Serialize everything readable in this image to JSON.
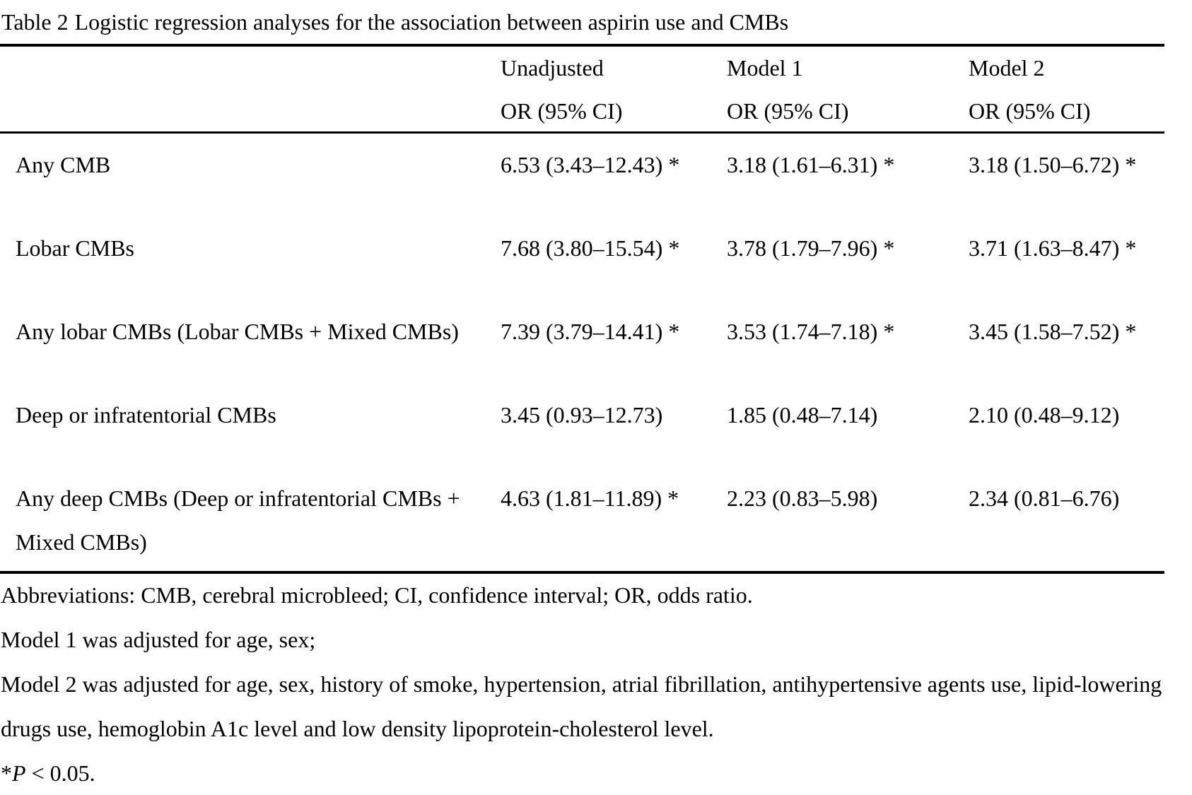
{
  "title": {
    "label": "Table 2",
    "text": "Logistic regression analyses for the association between aspirin use and CMBs"
  },
  "table": {
    "columns": [
      {
        "line1": "Unadjusted",
        "line2": "OR (95% CI)"
      },
      {
        "line1": "Model 1",
        "line2": "OR (95% CI)"
      },
      {
        "line1": "Model 2",
        "line2": "OR (95% CI)"
      }
    ],
    "rows": [
      {
        "label_lines": [
          "Any CMB"
        ],
        "unadjusted": "6.53 (3.43–12.43) *",
        "model1": "3.18 (1.61–6.31) *",
        "model2": "3.18 (1.50–6.72) *"
      },
      {
        "label_lines": [
          "Lobar CMBs"
        ],
        "unadjusted": "7.68 (3.80–15.54) *",
        "model1": "3.78 (1.79–7.96) *",
        "model2": "3.71 (1.63–8.47) *"
      },
      {
        "label_lines": [
          "Any lobar CMBs (Lobar CMBs + Mixed CMBs)"
        ],
        "unadjusted": "7.39 (3.79–14.41) *",
        "model1": "3.53 (1.74–7.18) *",
        "model2": "3.45 (1.58–7.52) *"
      },
      {
        "label_lines": [
          "Deep or infratentorial CMBs"
        ],
        "unadjusted": "3.45 (0.93–12.73)",
        "model1": "1.85 (0.48–7.14)",
        "model2": "2.10 (0.48–9.12)"
      },
      {
        "label_lines": [
          "Any deep CMBs (Deep or infratentorial CMBs +",
          "Mixed CMBs)"
        ],
        "unadjusted": "4.63 (1.81–11.89) *",
        "model1": "2.23 (0.83–5.98)",
        "model2": "2.34 (0.81–6.76)"
      }
    ]
  },
  "footnotes": {
    "abbreviations": "Abbreviations: CMB, cerebral microbleed; CI, confidence interval; OR, odds ratio.",
    "model1": "Model 1 was adjusted for age, sex;",
    "model2_line1": "Model 2 was adjusted for age, sex, history of smoke, hypertension, atrial fibrillation, antihypertensive agents use, lipid-lowering",
    "model2_line2": "drugs use, hemoglobin A1c level and low density lipoprotein-cholesterol level.",
    "significance": {
      "star": "*",
      "p": "P",
      "rest": " < 0.05."
    }
  },
  "colors": {
    "text": "#000000",
    "background": "#ffffff",
    "rule": "#000000"
  }
}
